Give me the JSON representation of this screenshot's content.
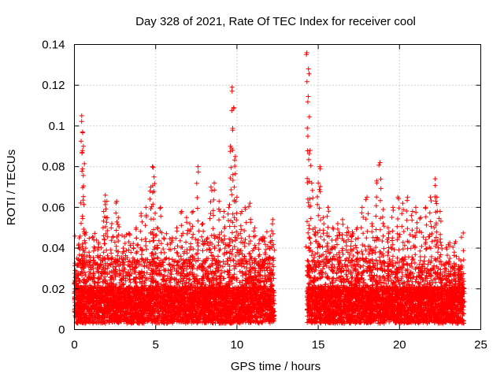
{
  "chart_data": {
    "type": "scatter",
    "title": "Day 328 of 2021, Rate Of TEC Index for receiver cool",
    "xlabel": "GPS time / hours",
    "ylabel": "ROTI / TECUs",
    "xlim": [
      0,
      25
    ],
    "ylim": [
      0,
      0.14
    ],
    "xticks": [
      0,
      5,
      10,
      15,
      20,
      25
    ],
    "xtick_labels": [
      "0",
      "5",
      "10",
      "15",
      "20",
      "25"
    ],
    "yticks": [
      0,
      0.02,
      0.04,
      0.06,
      0.08,
      0.1,
      0.12,
      0.14
    ],
    "ytick_labels": [
      "0",
      "0.02",
      "0.04",
      "0.06",
      "0.08",
      "0.1",
      "0.12",
      "0.14"
    ],
    "grid": true,
    "marker": "+",
    "color": "#ff0000",
    "gaps": [
      [
        12.3,
        14.3
      ]
    ],
    "series": [
      {
        "name": "ROTI",
        "x": [
          0.05,
          0.15,
          0.3,
          0.45,
          0.5,
          0.55,
          0.6,
          0.7,
          0.9,
          1.2,
          1.5,
          1.8,
          1.9,
          2.0,
          2.3,
          2.6,
          2.7,
          3.0,
          3.4,
          3.8,
          4.1,
          4.4,
          4.7,
          4.8,
          4.9,
          5.1,
          5.3,
          5.5,
          5.9,
          6.3,
          6.6,
          6.9,
          7.1,
          7.3,
          7.6,
          7.9,
          8.2,
          8.4,
          8.6,
          8.9,
          9.2,
          9.5,
          9.6,
          9.7,
          9.8,
          9.9,
          10.0,
          10.3,
          10.5,
          10.8,
          11.1,
          11.4,
          11.7,
          12.0,
          12.2,
          14.3,
          14.4,
          14.5,
          14.6,
          14.8,
          15.0,
          15.1,
          15.3,
          15.6,
          15.9,
          16.2,
          16.5,
          16.8,
          17.1,
          17.4,
          17.7,
          18.0,
          18.3,
          18.6,
          18.8,
          19.0,
          19.3,
          19.6,
          19.9,
          20.2,
          20.5,
          20.8,
          21.0,
          21.3,
          21.6,
          21.9,
          22.2,
          22.3,
          22.5,
          22.8,
          23.1,
          23.4,
          23.7,
          23.9
        ],
        "y": [
          0.029,
          0.035,
          0.045,
          0.105,
          0.097,
          0.09,
          0.048,
          0.04,
          0.038,
          0.044,
          0.042,
          0.058,
          0.066,
          0.063,
          0.052,
          0.063,
          0.055,
          0.04,
          0.047,
          0.05,
          0.057,
          0.06,
          0.07,
          0.08,
          0.075,
          0.05,
          0.06,
          0.045,
          0.042,
          0.05,
          0.058,
          0.055,
          0.052,
          0.058,
          0.08,
          0.052,
          0.045,
          0.07,
          0.072,
          0.063,
          0.058,
          0.06,
          0.09,
          0.119,
          0.109,
          0.085,
          0.065,
          0.058,
          0.06,
          0.062,
          0.05,
          0.044,
          0.045,
          0.04,
          0.054,
          0.136,
          0.128,
          0.088,
          0.072,
          0.05,
          0.072,
          0.08,
          0.055,
          0.06,
          0.05,
          0.052,
          0.054,
          0.05,
          0.048,
          0.05,
          0.06,
          0.065,
          0.052,
          0.073,
          0.082,
          0.059,
          0.05,
          0.06,
          0.065,
          0.062,
          0.065,
          0.058,
          0.06,
          0.055,
          0.06,
          0.065,
          0.074,
          0.065,
          0.058,
          0.03,
          0.035,
          0.028,
          0.03,
          0.025
        ]
      }
    ]
  }
}
